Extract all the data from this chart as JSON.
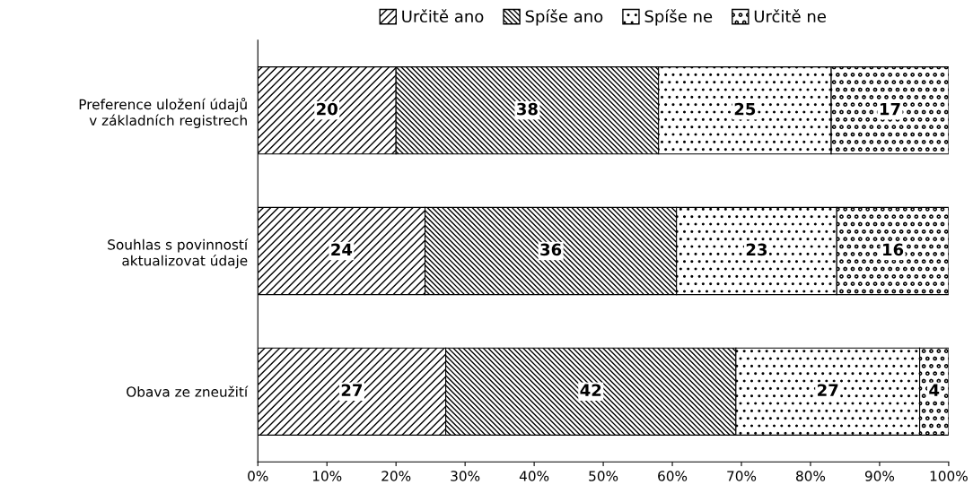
{
  "chart_data": {
    "type": "bar",
    "orientation": "horizontal",
    "stacked": true,
    "categories": [
      "Preference uložení údajů\nv základních registrech",
      "Souhlas s povinností\naktualizovat údaje",
      "Obava ze zneužití"
    ],
    "series": [
      {
        "name": "Určitě ano",
        "color": "#000000",
        "values": [
          20,
          24.2,
          27.2
        ],
        "value_labels": [
          "20",
          "24",
          "27"
        ]
      },
      {
        "name": "Spíše ano",
        "color": "#000000",
        "values": [
          38,
          36.4,
          42
        ],
        "value_labels": [
          "38",
          "36",
          "42"
        ]
      },
      {
        "name": "Spíše ne",
        "color": "#000000",
        "values": [
          25,
          23.2,
          26.6
        ],
        "value_labels": [
          "25",
          "23",
          "27"
        ]
      },
      {
        "name": "Určitě ne",
        "color": "#000000",
        "values": [
          17,
          16.2,
          4.2
        ],
        "value_labels": [
          "17",
          "16",
          "4"
        ]
      }
    ],
    "xlim": [
      0,
      100
    ],
    "xticks": [
      {
        "value": 0,
        "label": "0%"
      },
      {
        "value": 10,
        "label": "10%"
      },
      {
        "value": 20,
        "label": "20%"
      },
      {
        "value": 30,
        "label": "30%"
      },
      {
        "value": 40,
        "label": "40%"
      },
      {
        "value": 50,
        "label": "50%"
      },
      {
        "value": 60,
        "label": "60%"
      },
      {
        "value": 70,
        "label": "70%"
      },
      {
        "value": 80,
        "label": "80%"
      },
      {
        "value": 90,
        "label": "90%"
      },
      {
        "value": 100,
        "label": "100%"
      }
    ],
    "grid": false,
    "legend": "top"
  }
}
